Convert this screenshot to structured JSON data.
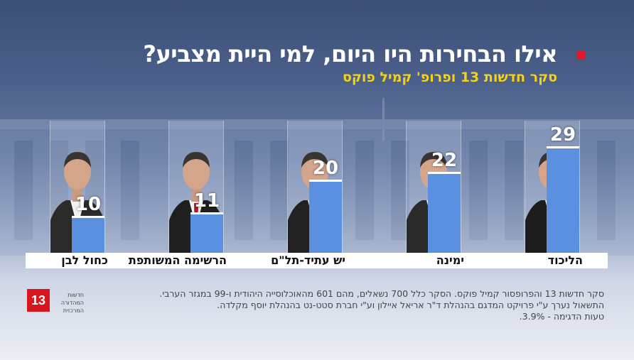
{
  "title": "אילו הבחירות היו היום, למי היית מצביע?",
  "subtitle": "סקר חדשות 13 ופרופ' קמיל פוקס",
  "chart_data": {
    "type": "bar",
    "categories": [
      "כחול לבן",
      "הרשימה המשותפת",
      "יש עתיד-תל\"ם",
      "ימינה",
      "הליכוד"
    ],
    "values": [
      10,
      11,
      20,
      22,
      29
    ],
    "value_labels": [
      "10",
      "11",
      "20",
      "22",
      "29"
    ],
    "bar_color": "#5b8fe0",
    "ylim": [
      0,
      36
    ]
  },
  "footer": {
    "logo_text": "13",
    "logo_caption": "חדשות המהדורה המרכזית",
    "note_lines": [
      "סקר חדשות 13 והפרופסור קמיל פוקס. הסקר כלל 700 נשאלים, מהם 601 מהאוכלוסייה היהודית ו-99 במגזר הערבי.",
      "התשאול נערך ע\"י פרויקט המדגם בהנהלת ד\"ר אריאל איילון וע\"י חברת סטט-נט בהנהלת יוסף מקלדה.",
      "טעות הדגימה - 3.9%."
    ]
  }
}
